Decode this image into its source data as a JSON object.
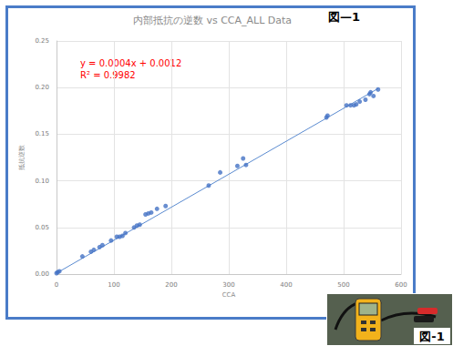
{
  "chart_data": {
    "type": "scatter",
    "title": "内部抵抗の逆数 vs CCA_ALL Data",
    "x_label": "CCA",
    "y_label": "抵抗逆数",
    "color": "#4472c4",
    "marker": "circle",
    "x": [
      0,
      2,
      5,
      45,
      60,
      65,
      75,
      80,
      95,
      105,
      110,
      115,
      120,
      135,
      140,
      145,
      155,
      160,
      165,
      175,
      190,
      265,
      285,
      315,
      325,
      330,
      470,
      472,
      505,
      512,
      518,
      522,
      528,
      538,
      545,
      547,
      552,
      560
    ],
    "values": [
      0.001,
      0.002,
      0.003,
      0.019,
      0.024,
      0.026,
      0.029,
      0.031,
      0.036,
      0.04,
      0.04,
      0.041,
      0.044,
      0.05,
      0.052,
      0.053,
      0.064,
      0.065,
      0.066,
      0.07,
      0.073,
      0.095,
      0.109,
      0.116,
      0.124,
      0.117,
      0.168,
      0.17,
      0.181,
      0.181,
      0.181,
      0.182,
      0.185,
      0.187,
      0.193,
      0.195,
      0.191,
      0.198
    ],
    "trendline": {
      "x": [
        0,
        560
      ],
      "values": [
        0.001,
        0.199
      ],
      "color": "#5b8bd0",
      "line_style": "solid"
    },
    "annotations": [
      {
        "text": "y = 0.0004x + 0.0012",
        "color": "#ff0000"
      },
      {
        "text": "R² = 0.9982",
        "color": "#ff0000"
      }
    ],
    "xlim": [
      0,
      600
    ],
    "xticks": [
      0,
      100,
      200,
      300,
      400,
      500,
      600
    ],
    "ylim": [
      0,
      0.25
    ],
    "yticks": [
      {
        "value": 0,
        "label": "0.00"
      },
      {
        "value": 0.05,
        "label": "0.05"
      },
      {
        "value": 0.1,
        "label": "0.10"
      },
      {
        "value": 0.15,
        "label": "0.15"
      },
      {
        "value": 0.2,
        "label": "0.20"
      },
      {
        "value": 0.25,
        "label": "0.25"
      }
    ],
    "grid": true
  },
  "labels": {
    "chart": "図—1",
    "photo": "図-1"
  }
}
